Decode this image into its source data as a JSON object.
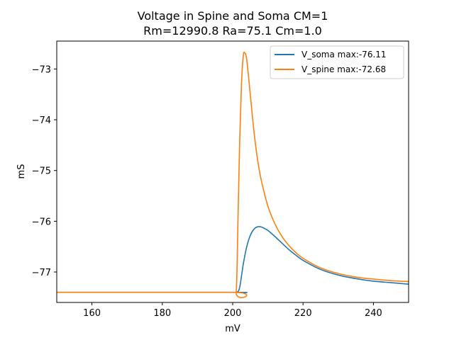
{
  "chart_data": {
    "type": "line",
    "title": "Voltage in Spine and Soma CM=1",
    "subtitle": "Rm=12990.8 Ra=75.1 Cm=1.0",
    "xlabel": "mV",
    "ylabel": "mS",
    "xlim": [
      150,
      250
    ],
    "ylim": [
      -77.6,
      -72.45
    ],
    "xticks": [
      160,
      180,
      200,
      220,
      240
    ],
    "yticks": [
      -77,
      -76,
      -75,
      -74,
      -73
    ],
    "ytick_labels": [
      "−77",
      "−76",
      "−75",
      "−74",
      "−73"
    ],
    "grid": false,
    "legend_position": "upper right",
    "series": [
      {
        "name": "V_soma max:-76.11",
        "color": "#1f77b4",
        "x": [
          150,
          200,
          201.2,
          202.0,
          203,
          204,
          205,
          206,
          207,
          208,
          209,
          210,
          212,
          214,
          216,
          218,
          220,
          225,
          230,
          235,
          240,
          245,
          250
        ],
        "y": [
          -77.4,
          -77.4,
          -77.4,
          -77.3,
          -76.85,
          -76.5,
          -76.28,
          -76.16,
          -76.11,
          -76.11,
          -76.14,
          -76.18,
          -76.3,
          -76.43,
          -76.56,
          -76.67,
          -76.77,
          -76.95,
          -77.06,
          -77.13,
          -77.18,
          -77.21,
          -77.24
        ]
      },
      {
        "name": "V_spine max:-72.68",
        "color": "#ff7f0e",
        "x": [
          150,
          200,
          201.0,
          201.5,
          202.0,
          202.5,
          203.0,
          203.4,
          204,
          205,
          206,
          207,
          208,
          210,
          212,
          214,
          216,
          218,
          220,
          225,
          230,
          235,
          240,
          245,
          250
        ],
        "y": [
          -77.4,
          -77.4,
          -77.4,
          -76.0,
          -74.4,
          -73.3,
          -72.75,
          -72.68,
          -72.82,
          -73.5,
          -74.2,
          -74.75,
          -75.15,
          -75.7,
          -76.05,
          -76.3,
          -76.48,
          -76.62,
          -76.73,
          -76.92,
          -77.03,
          -77.1,
          -77.14,
          -77.17,
          -77.19
        ]
      }
    ]
  }
}
